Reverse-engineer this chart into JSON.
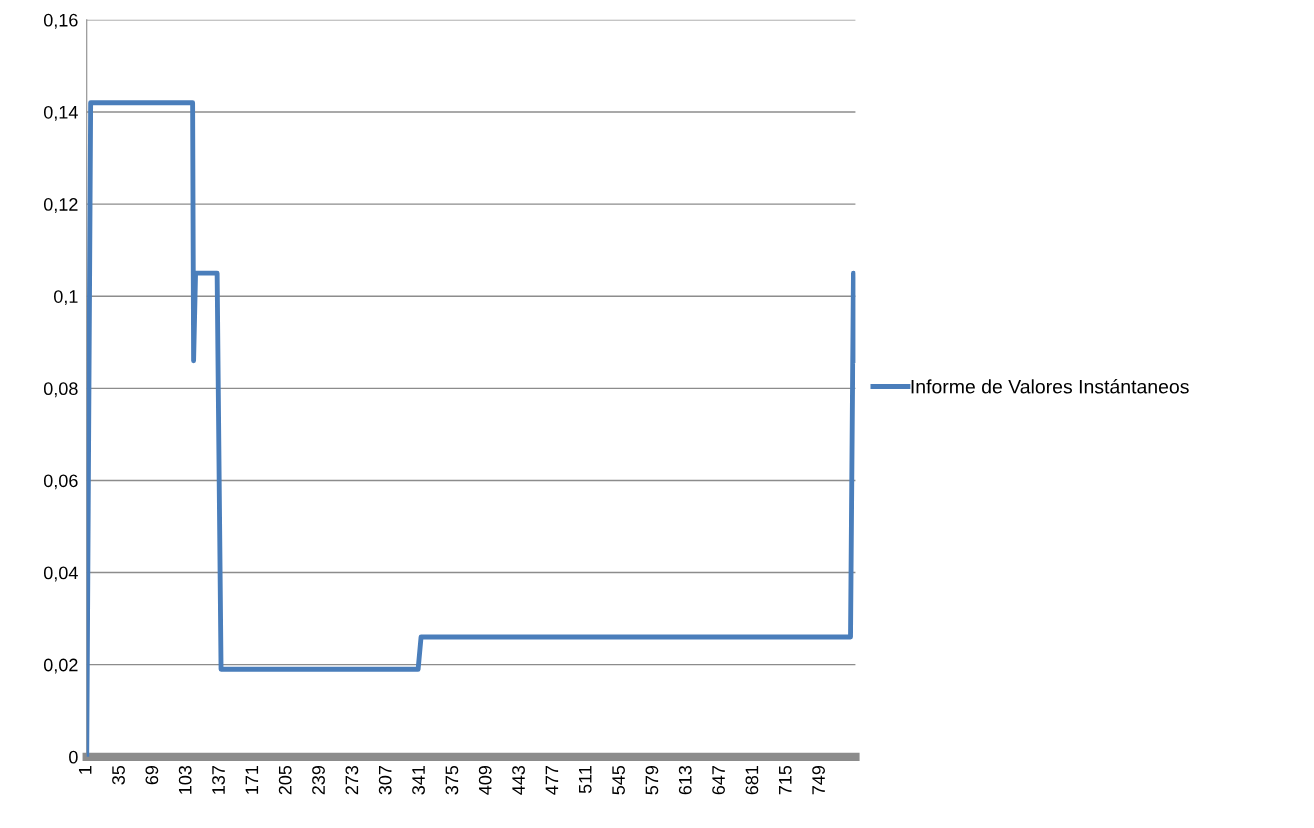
{
  "chart_data": {
    "type": "line",
    "xlim": [
      1,
      785
    ],
    "xticks": [
      1,
      35,
      69,
      103,
      137,
      171,
      205,
      239,
      273,
      307,
      341,
      375,
      409,
      443,
      477,
      511,
      545,
      579,
      613,
      647,
      681,
      715,
      749
    ],
    "ylim": [
      0,
      0.16
    ],
    "yticks": [
      {
        "value": 0,
        "label": "0"
      },
      {
        "value": 0.02,
        "label": "0,02"
      },
      {
        "value": 0.04,
        "label": "0,04"
      },
      {
        "value": 0.06,
        "label": "0,06"
      },
      {
        "value": 0.08,
        "label": "0,08"
      },
      {
        "value": 0.1,
        "label": "0,1"
      },
      {
        "value": 0.12,
        "label": "0,12"
      },
      {
        "value": 0.14,
        "label": "0,14"
      },
      {
        "value": 0.16,
        "label": "0,16"
      }
    ],
    "grid": "y",
    "legend": "right",
    "marker": "none",
    "line_style": "solid",
    "series": [
      {
        "name": "Informe de Valores Instántaneos",
        "color": "#4a7ebb",
        "x": [
          1,
          5,
          109,
          110,
          112,
          134,
          138,
          339,
          342,
          780,
          783,
          785
        ],
        "values": [
          0,
          0.142,
          0.142,
          0.086,
          0.105,
          0.105,
          0.019,
          0.019,
          0.026,
          0.026,
          0.105,
          0.086
        ]
      }
    ]
  }
}
